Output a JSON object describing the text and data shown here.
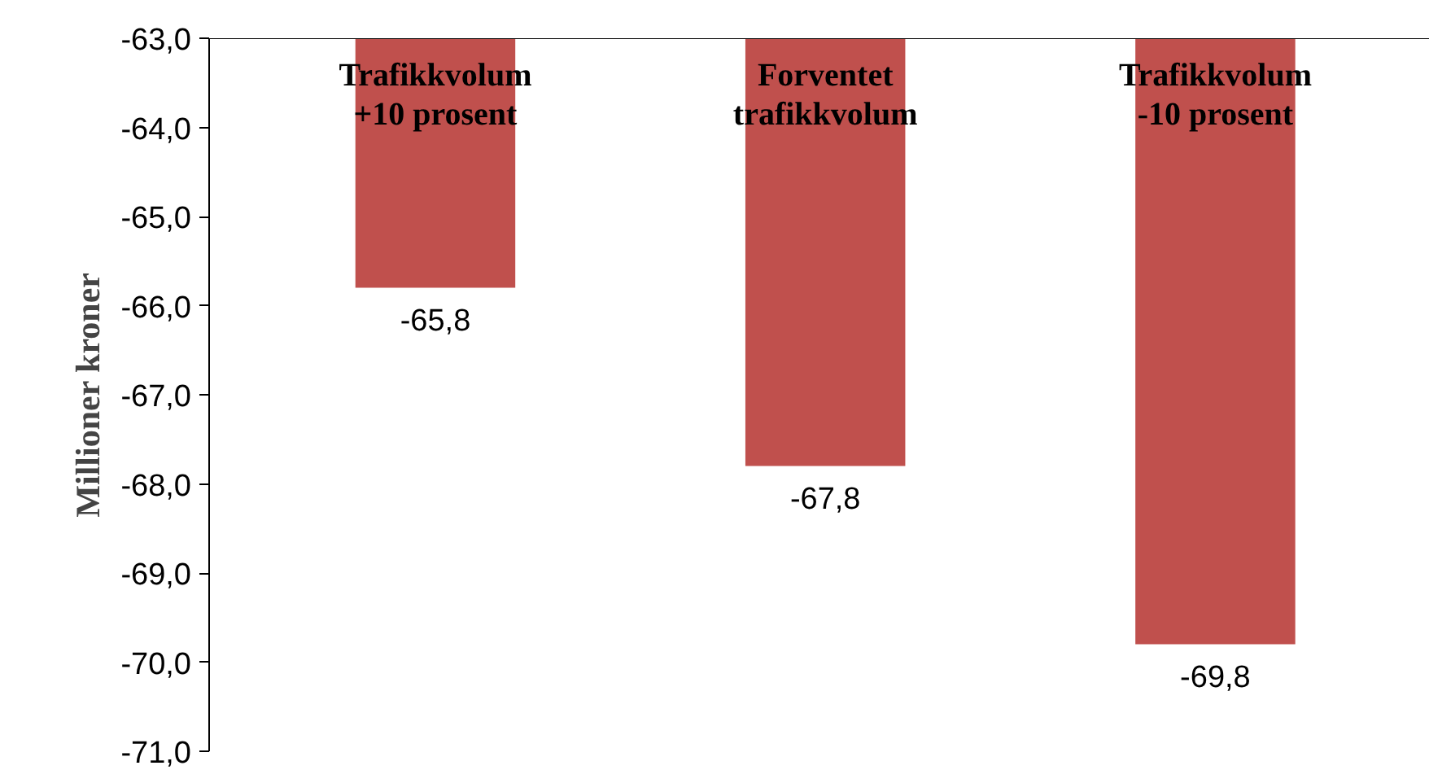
{
  "chart_data": {
    "type": "bar",
    "ylabel": "Millioner kroner",
    "categories": [
      "Trafikkvolum\n+10 prosent",
      "Forventet\ntrafikkvolum",
      "Trafikkvolum\n-10 prosent"
    ],
    "values": [
      -65.8,
      -67.8,
      -69.8
    ],
    "value_labels": [
      "-65,8",
      "-67,8",
      "-69,8"
    ],
    "color": "#c0504d",
    "ylim": [
      -71,
      -63
    ],
    "yticks": [
      {
        "value": -71,
        "label": "-71,0"
      },
      {
        "value": -70,
        "label": "-70,0"
      },
      {
        "value": -69,
        "label": "-69,0"
      },
      {
        "value": -68,
        "label": "-68,0"
      },
      {
        "value": -67,
        "label": "-67,0"
      },
      {
        "value": -66,
        "label": "-66,0"
      },
      {
        "value": -65,
        "label": "-65,0"
      },
      {
        "value": -64,
        "label": "-64,0"
      },
      {
        "value": -63,
        "label": "-63,0"
      }
    ],
    "grid": false
  }
}
